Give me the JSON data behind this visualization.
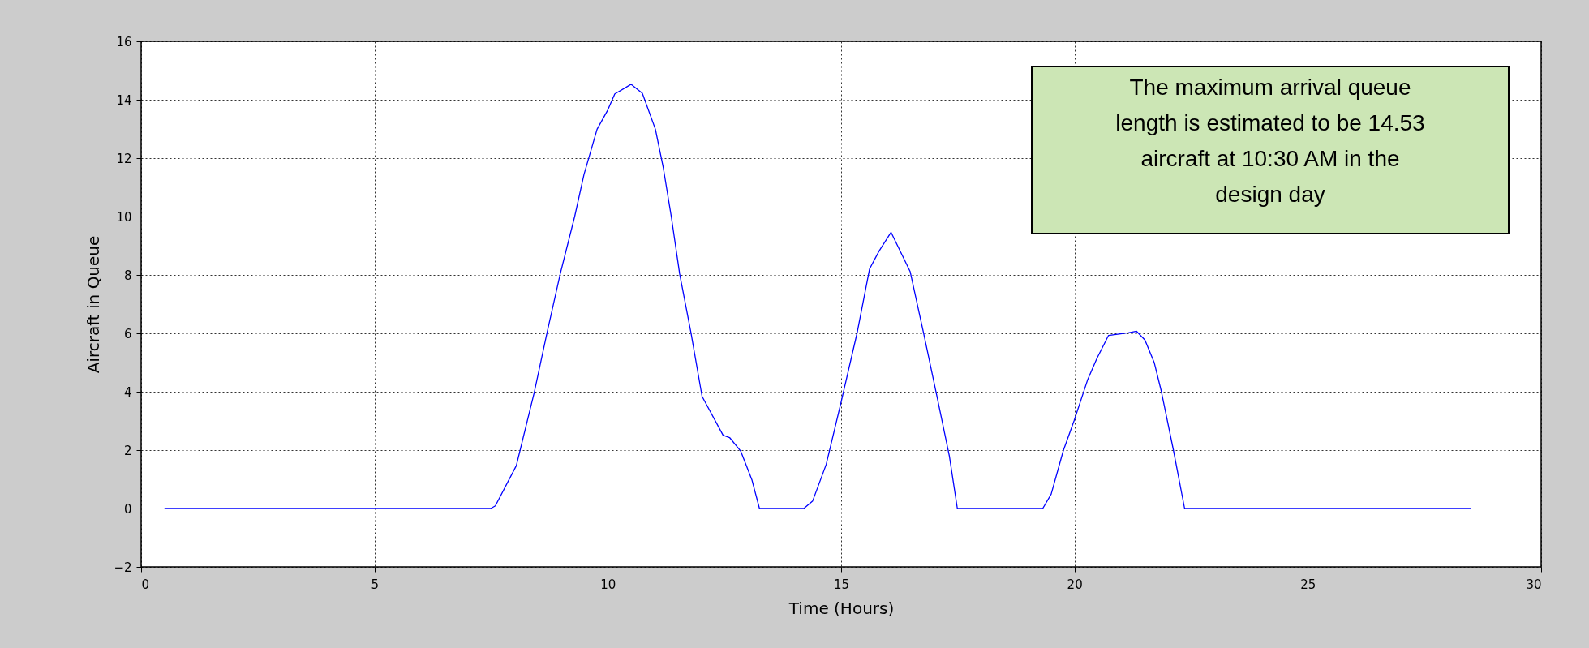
{
  "chart_data": {
    "type": "line",
    "xlabel": "Time (Hours)",
    "ylabel": "Aircraft in Queue",
    "annotations": [
      "The maximum arrival queue length is estimated to be 14.53 aircraft at 10:30 AM in the design day"
    ],
    "xlim": [
      0,
      30
    ],
    "xticks": [
      0,
      5,
      10,
      15,
      20,
      25,
      30
    ],
    "ylim": [
      -2,
      16
    ],
    "yticks": [
      -2,
      0,
      2,
      4,
      6,
      8,
      10,
      12,
      14,
      16
    ],
    "grid": true,
    "marker": "none",
    "line_style": "solid",
    "series": [
      {
        "color": "#0000ff",
        "x": [
          0.5,
          7.49,
          7.59,
          8.04,
          8.42,
          8.7,
          8.98,
          9.29,
          9.49,
          9.77,
          10.0,
          10.15,
          10.5,
          10.74,
          11.02,
          11.19,
          11.36,
          11.54,
          11.78,
          12.02,
          12.47,
          12.61,
          12.85,
          13.09,
          13.25,
          14.2,
          14.39,
          14.68,
          15.0,
          15.35,
          15.61,
          15.81,
          16.07,
          16.48,
          16.77,
          17.03,
          17.32,
          17.49,
          19.32,
          19.5,
          19.76,
          19.99,
          20.28,
          20.48,
          20.73,
          21.15,
          21.33,
          21.51,
          21.71,
          21.86,
          22.12,
          22.36,
          28.5
        ],
        "values": [
          0,
          0,
          0.09,
          1.47,
          3.95,
          6.04,
          8.03,
          10.0,
          11.44,
          12.99,
          13.65,
          14.2,
          14.53,
          14.22,
          12.99,
          11.66,
          10.0,
          8.03,
          6.04,
          3.84,
          2.51,
          2.43,
          1.96,
          0.97,
          0,
          0,
          0.26,
          1.51,
          3.65,
          6.07,
          8.21,
          8.81,
          9.46,
          8.11,
          5.98,
          4.02,
          1.79,
          0,
          0,
          0.49,
          1.98,
          3.0,
          4.4,
          5.14,
          5.93,
          6.02,
          6.07,
          5.77,
          4.99,
          4.02,
          2.0,
          0,
          0
        ]
      }
    ]
  }
}
